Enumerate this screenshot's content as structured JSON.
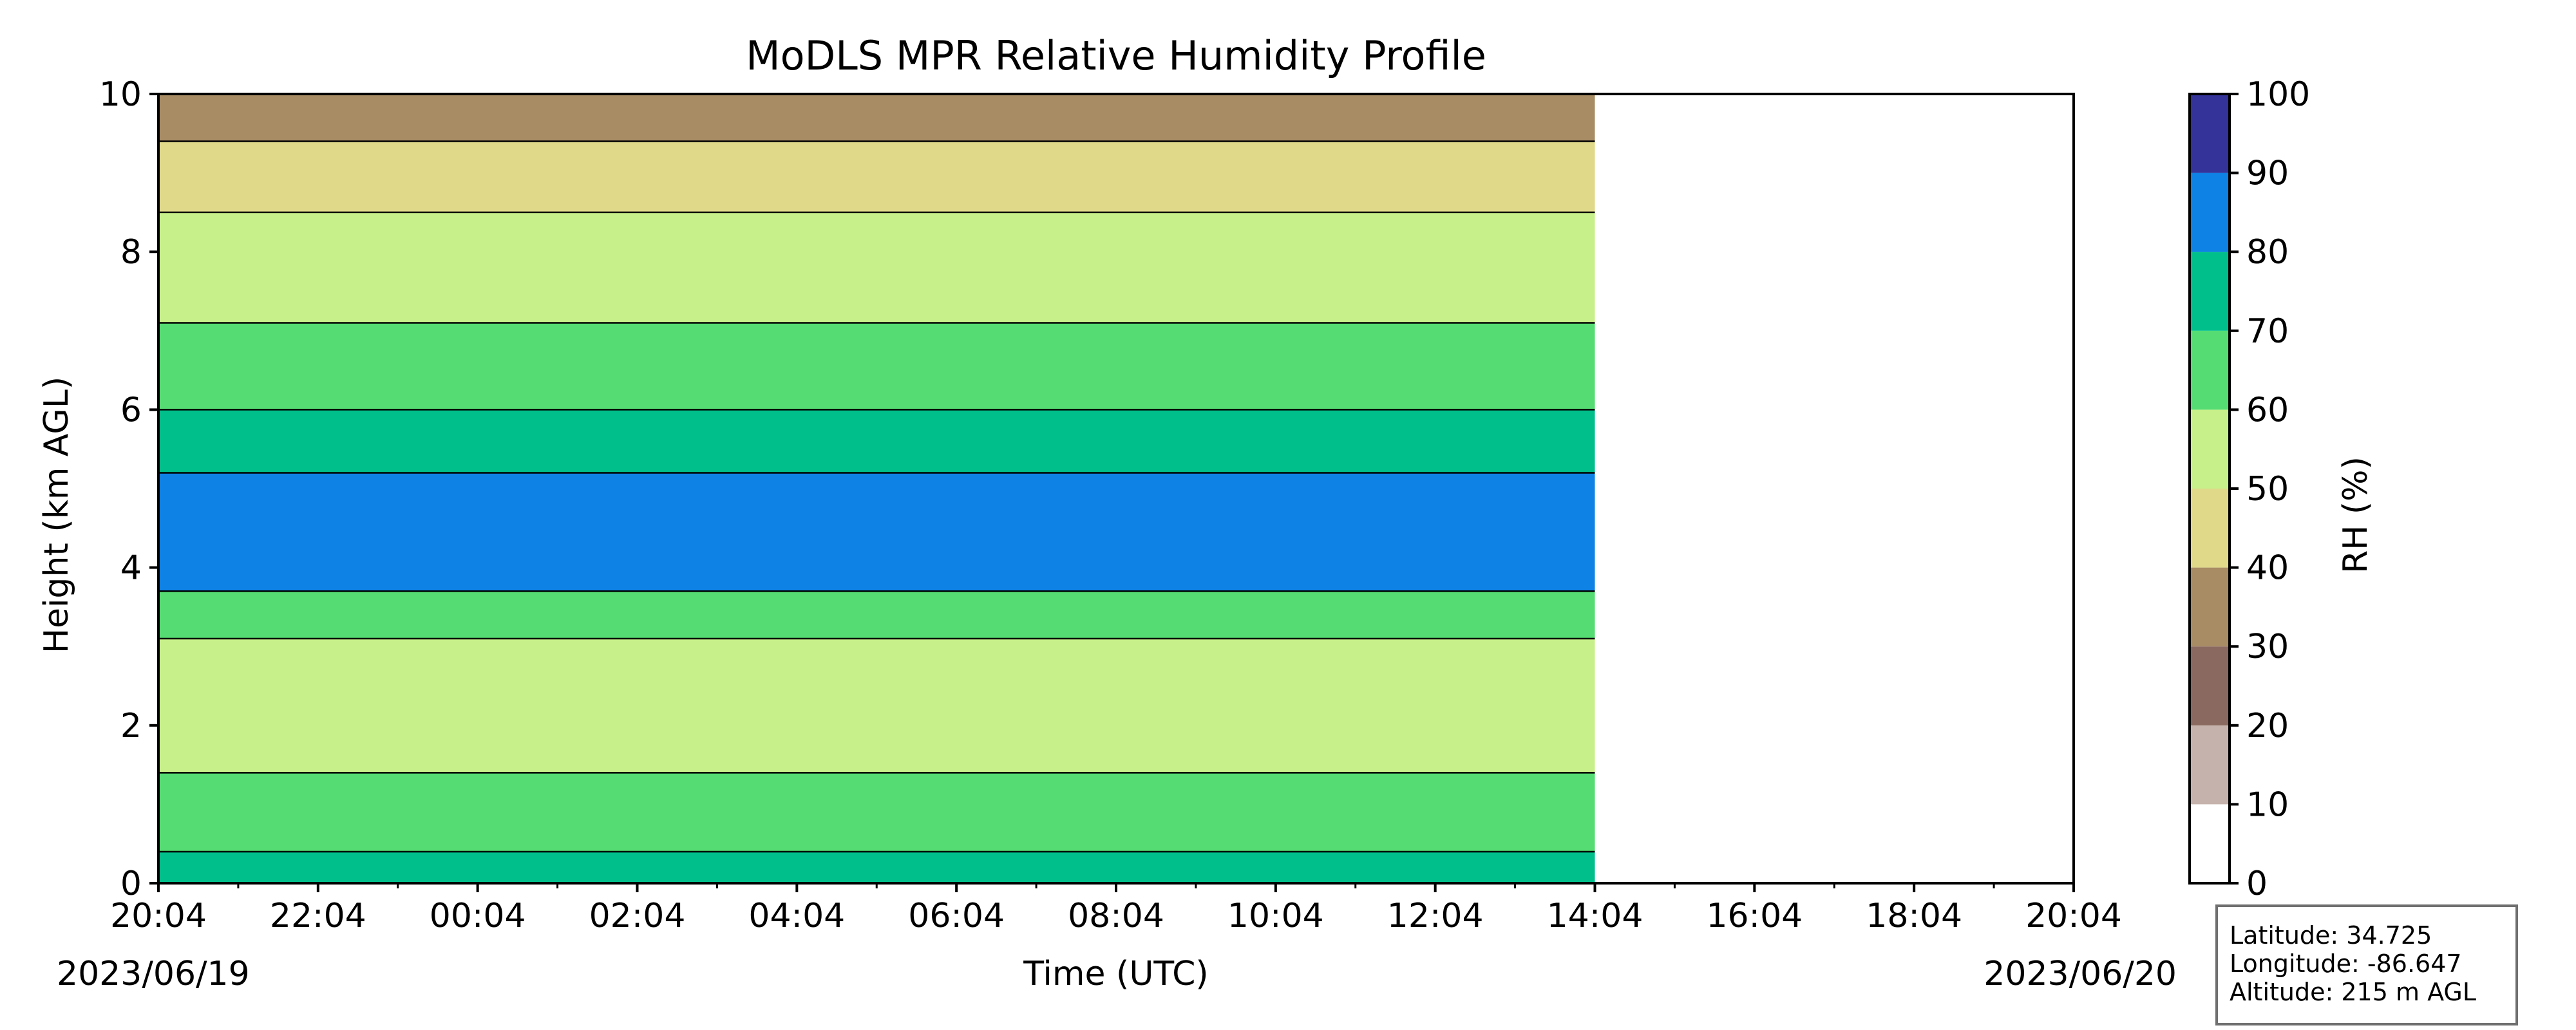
{
  "chart_data": {
    "type": "heatmap",
    "title": "MoDLS MPR Relative Humidity Profile",
    "xlabel": "Time (UTC)",
    "ylabel": "Height (km AGL)",
    "x_ticks": [
      "20:04",
      "22:04",
      "00:04",
      "02:04",
      "04:04",
      "06:04",
      "08:04",
      "10:04",
      "12:04",
      "14:04",
      "16:04",
      "18:04",
      "20:04"
    ],
    "y_ticks": [
      "0",
      "2",
      "4",
      "6",
      "8",
      "10"
    ],
    "ylim": [
      0,
      10
    ],
    "start_date": "2023/06/19",
    "end_date": "2023/06/20",
    "data_end_time": "14:04",
    "colorbar": {
      "label": "RH (%)",
      "levels": [
        0,
        10,
        20,
        30,
        40,
        50,
        60,
        70,
        80,
        90,
        100
      ],
      "tick_labels": [
        "0",
        "10",
        "20",
        "30",
        "40",
        "50",
        "60",
        "70",
        "80",
        "90",
        "100"
      ],
      "colors": [
        "#ffffff",
        "#c6b2ac",
        "#8a6a60",
        "#a88c64",
        "#e0d98a",
        "#c8f08a",
        "#55dd73",
        "#00bf8a",
        "#0f82e6",
        "#33339a"
      ]
    },
    "profile_bands": [
      {
        "from": 0.0,
        "to": 0.4,
        "rh_class": 70
      },
      {
        "from": 0.4,
        "to": 1.4,
        "rh_class": 60
      },
      {
        "from": 1.4,
        "to": 3.1,
        "rh_class": 50
      },
      {
        "from": 3.1,
        "to": 3.7,
        "rh_class": 60
      },
      {
        "from": 3.7,
        "to": 5.2,
        "rh_class": 80
      },
      {
        "from": 5.2,
        "to": 6.0,
        "rh_class": 70
      },
      {
        "from": 6.0,
        "to": 7.1,
        "rh_class": 60
      },
      {
        "from": 7.1,
        "to": 8.5,
        "rh_class": 50
      },
      {
        "from": 8.5,
        "to": 9.4,
        "rh_class": 40
      },
      {
        "from": 9.4,
        "to": 10.0,
        "rh_class": 30
      }
    ]
  },
  "info": {
    "latitude": "Latitude: 34.725",
    "longitude": "Longitude: -86.647",
    "altitude": "Altitude: 215 m AGL"
  }
}
